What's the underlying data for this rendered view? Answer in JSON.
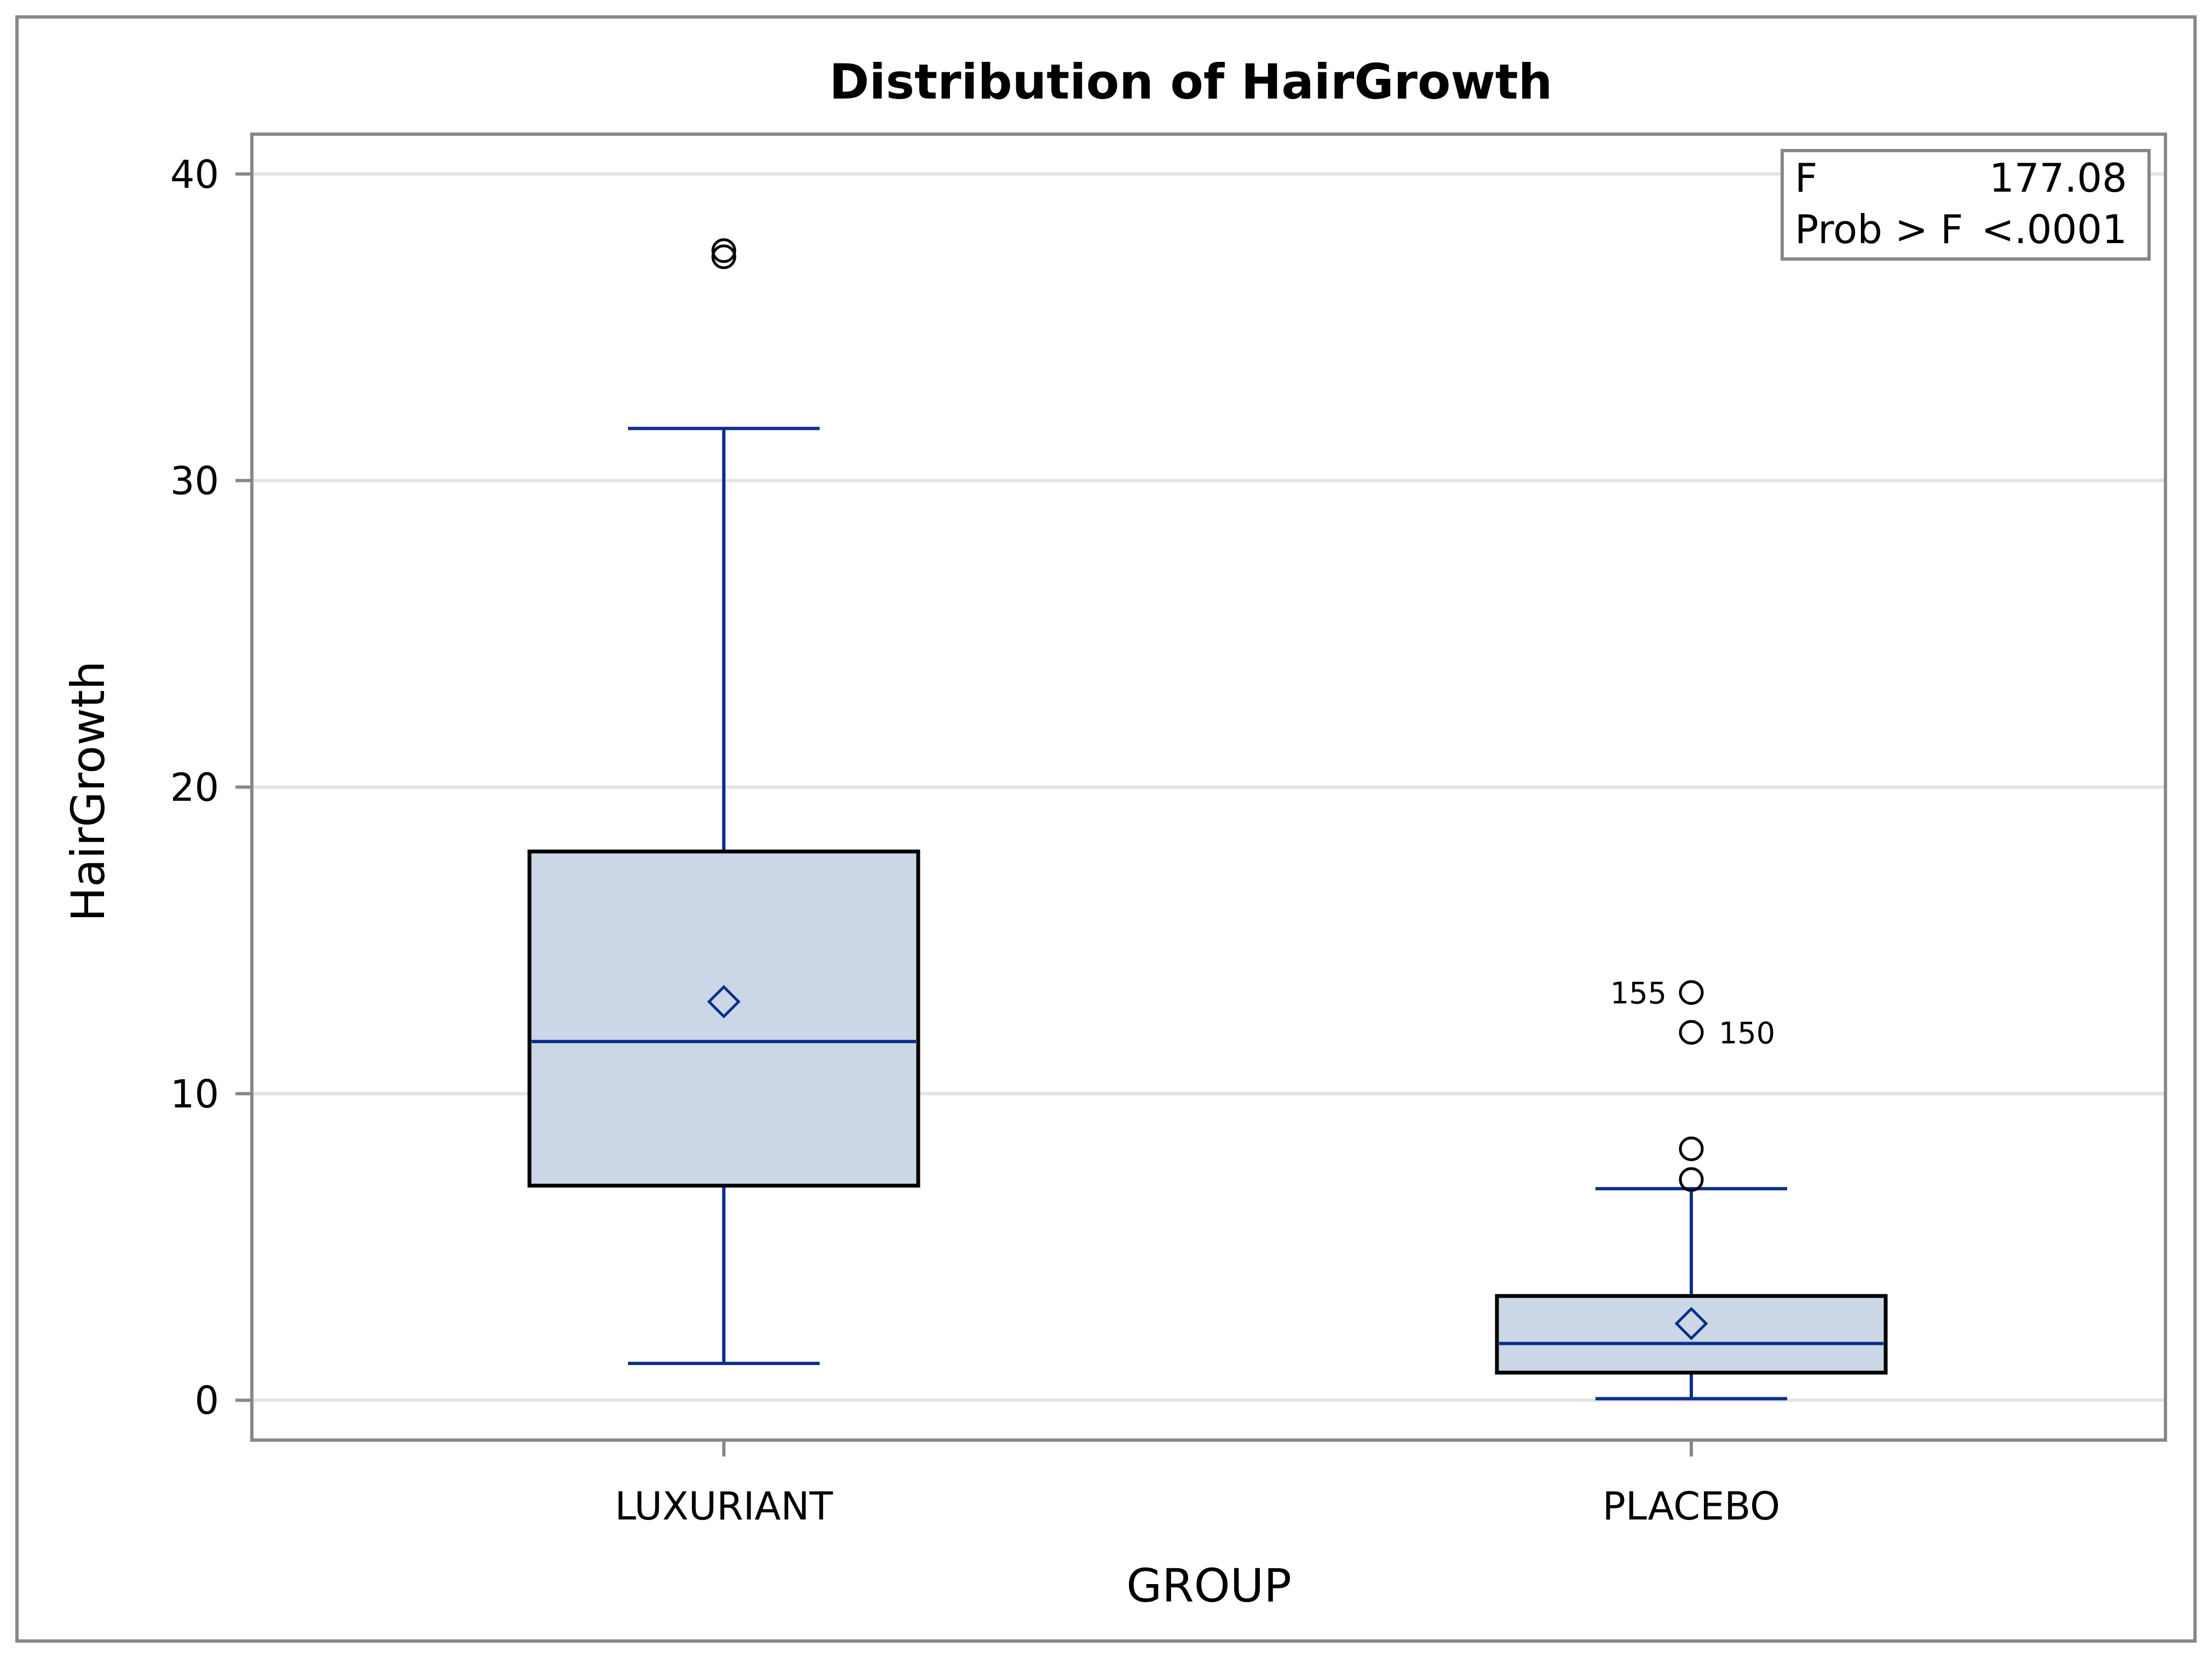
{
  "chart_data": {
    "type": "box",
    "title": "Distribution of HairGrowth",
    "xlabel": "GROUP",
    "ylabel": "HairGrowth",
    "ylim": [
      -1.3,
      41.3
    ],
    "yticks": [
      0,
      10,
      20,
      30,
      40
    ],
    "grid": true,
    "categories": [
      "LUXURIANT",
      "PLACEBO"
    ],
    "boxes": [
      {
        "category": "LUXURIANT",
        "whisker_low": 1.2,
        "q1": 7.0,
        "median": 11.7,
        "mean": 13.0,
        "q3": 17.9,
        "whisker_high": 31.7,
        "outliers": [
          {
            "value": 37.5,
            "label": ""
          },
          {
            "value": 37.3,
            "label": ""
          }
        ]
      },
      {
        "category": "PLACEBO",
        "whisker_low": 0.05,
        "q1": 0.9,
        "median": 1.85,
        "mean": 2.5,
        "q3": 3.4,
        "whisker_high": 6.9,
        "outliers": [
          {
            "value": 13.3,
            "label": "155"
          },
          {
            "value": 12.0,
            "label": "150"
          },
          {
            "value": 8.2,
            "label": ""
          },
          {
            "value": 7.2,
            "label": ""
          }
        ]
      }
    ],
    "stats_inset": {
      "placement": "top-right",
      "rows": [
        {
          "label": "F",
          "value": "177.08"
        },
        {
          "label": "Prob > F",
          "value": "<.0001"
        }
      ]
    },
    "colors": {
      "box_fill": "#cbd7e7",
      "box_border": "#000000",
      "whisker": "#0b2f8a",
      "grid": "#e3e3e3",
      "axis_frame": "#888888"
    }
  }
}
